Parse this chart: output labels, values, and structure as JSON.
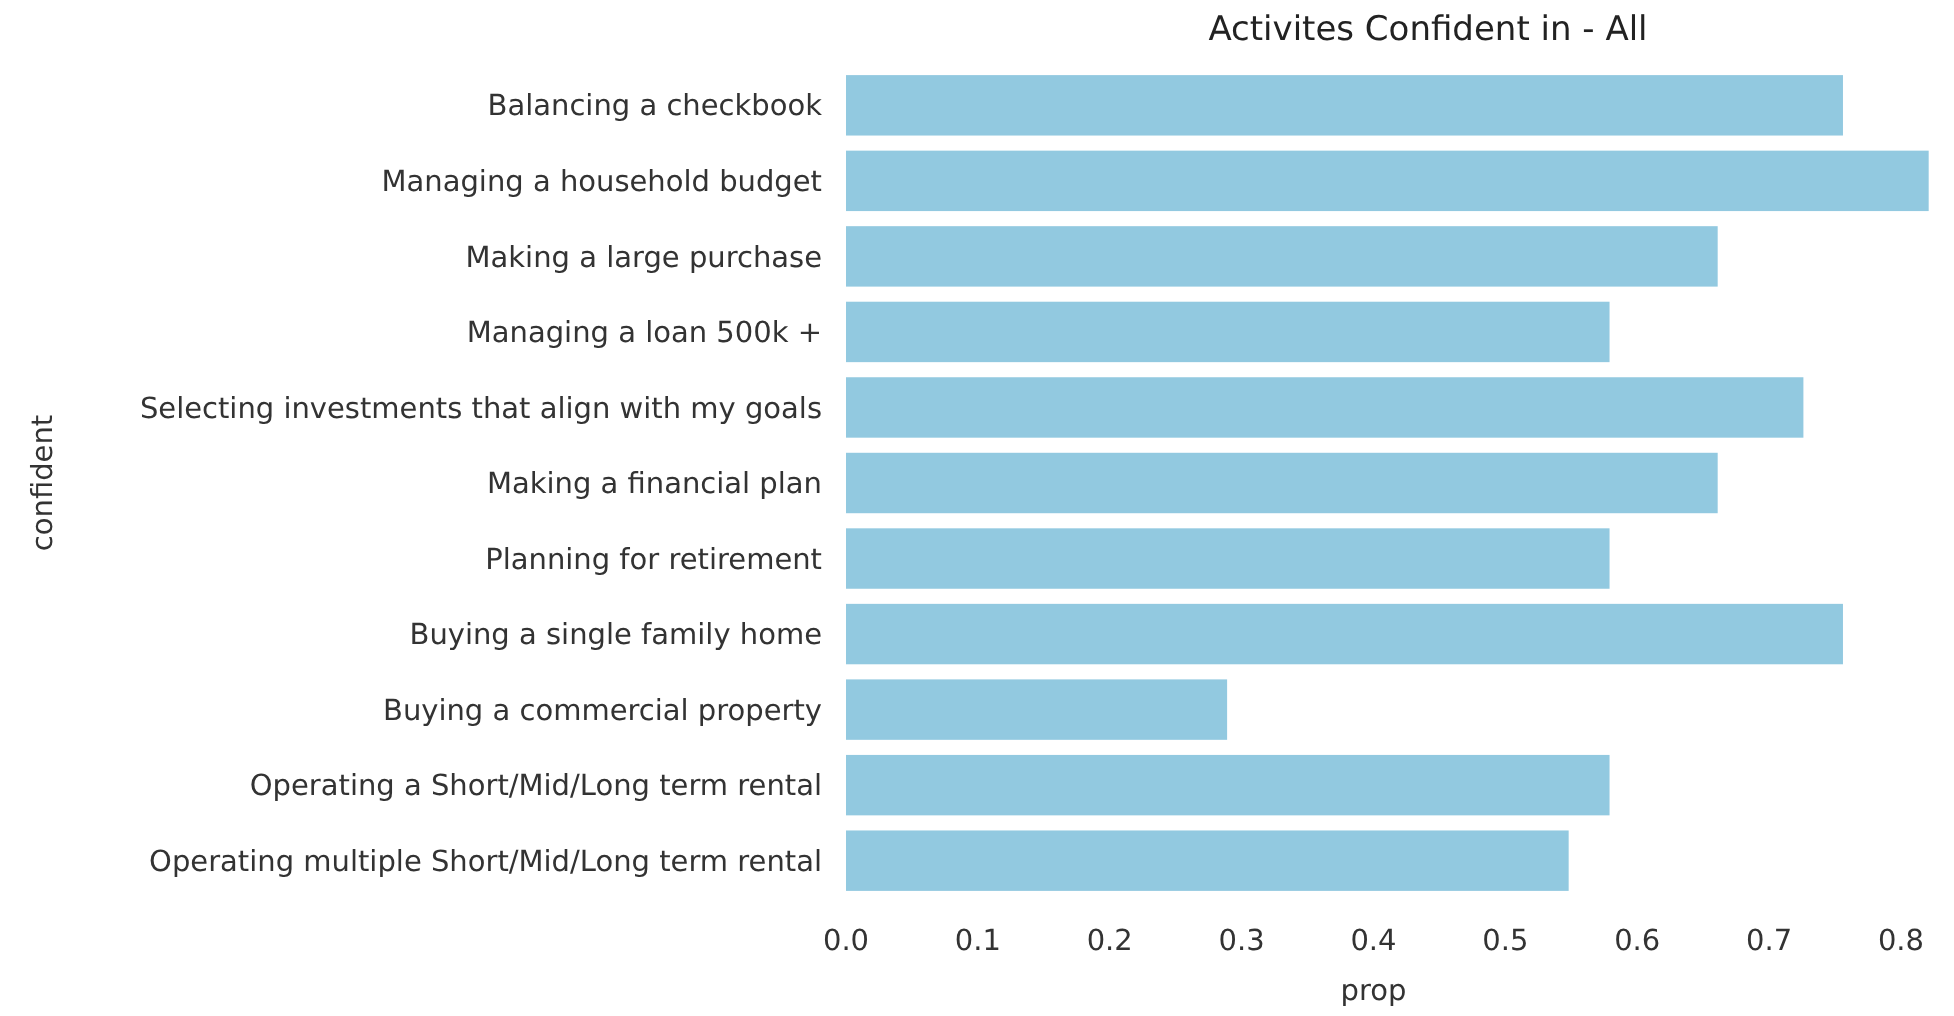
{
  "chart_data": {
    "type": "bar",
    "orientation": "horizontal",
    "title": "Activites Confident in - All",
    "xlabel": "prop",
    "ylabel": "confident",
    "categories": [
      "Balancing a checkbook",
      "Managing a household budget",
      "Making a large purchase",
      "Managing a loan 500k +",
      "Selecting investments that align with my goals",
      "Making a financial plan",
      "Planning for retirement",
      "Buying a single family home",
      "Buying a commercial property",
      "Operating a Short/Mid/Long term rental",
      "Operating multiple Short/Mid/Long term rental"
    ],
    "values": [
      0.756,
      0.821,
      0.661,
      0.579,
      0.726,
      0.661,
      0.579,
      0.756,
      0.289,
      0.579,
      0.548
    ],
    "color": "#92c9e0",
    "xlim": [
      0,
      0.822
    ],
    "xticks": [
      {
        "value": 0,
        "label": "0.0"
      },
      0.1,
      0.2,
      0.3,
      0.4,
      0.5,
      0.6,
      0.7,
      0.8
    ],
    "grid": false
  }
}
